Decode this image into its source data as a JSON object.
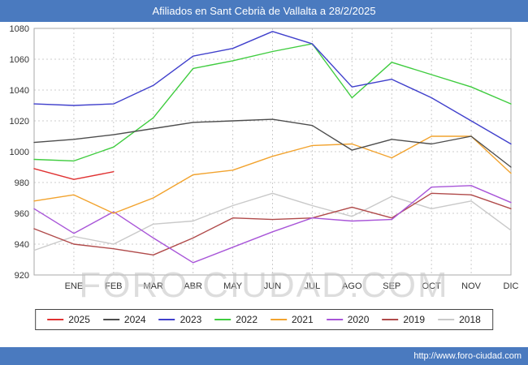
{
  "header": {
    "title": "Afiliados en Sant Cebrià de Vallalta a 28/2/2025"
  },
  "watermark": "FORO-CIUDAD.COM",
  "footer": {
    "url": "http://www.foro-ciudad.com"
  },
  "colors": {
    "title_bar": "#4a7abf",
    "footer_bar": "#4a7abf",
    "grid": "#cccccc",
    "plot_border": "#aaaaaa",
    "axis_text": "#333333"
  },
  "chart_data": {
    "type": "line",
    "title": "Afiliados en Sant Cebrià de Vallalta a 28/2/2025",
    "xlabel": "",
    "ylabel": "",
    "ylim": [
      920,
      1080
    ],
    "y_tick_step": 20,
    "grid": true,
    "legend_position": "bottom",
    "first_point_on_axis": true,
    "x_tick_labels": [
      "ENE",
      "FEB",
      "MAR",
      "ABR",
      "MAY",
      "JUN",
      "JUL",
      "AGO",
      "SEP",
      "OCT",
      "NOV",
      "DIC"
    ],
    "series": [
      {
        "name": "2025",
        "color": "#e03232",
        "values": [
          989,
          982,
          987
        ]
      },
      {
        "name": "2024",
        "color": "#4d4d4d",
        "values": [
          1006,
          1008,
          1011,
          1015,
          1019,
          1020,
          1021,
          1017,
          1001,
          1008,
          1005,
          1010,
          990
        ]
      },
      {
        "name": "2023",
        "color": "#4040cc",
        "values": [
          1031,
          1030,
          1031,
          1043,
          1062,
          1067,
          1078,
          1070,
          1042,
          1047,
          1035,
          1020,
          1005
        ]
      },
      {
        "name": "2022",
        "color": "#3fcc3f",
        "values": [
          995,
          994,
          1003,
          1022,
          1054,
          1059,
          1065,
          1070,
          1035,
          1058,
          1050,
          1042,
          1031
        ]
      },
      {
        "name": "2021",
        "color": "#f2a32e",
        "values": [
          968,
          972,
          960,
          970,
          985,
          988,
          997,
          1004,
          1005,
          996,
          1010,
          1010,
          986
        ]
      },
      {
        "name": "2020",
        "color": "#a855d8",
        "values": [
          963,
          947,
          961,
          944,
          928,
          938,
          948,
          957,
          955,
          956,
          977,
          978,
          967
        ]
      },
      {
        "name": "2019",
        "color": "#b04a4a",
        "values": [
          950,
          940,
          937,
          933,
          944,
          957,
          956,
          957,
          964,
          957,
          973,
          972,
          963
        ]
      },
      {
        "name": "2018",
        "color": "#c9c9c9",
        "values": [
          936,
          945,
          940,
          953,
          955,
          965,
          973,
          965,
          958,
          971,
          963,
          968,
          949
        ]
      }
    ]
  }
}
